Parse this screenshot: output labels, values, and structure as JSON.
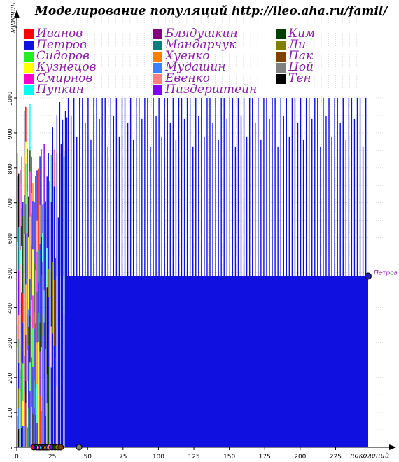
{
  "title": "Моделирование популяций  http://lleo.aha.ru/famil/",
  "y_axis_label": "мужчин",
  "x_axis_label": "поколений",
  "end_label": "Петров",
  "legend": [
    {
      "name": "Иванов",
      "color": "#ff0000"
    },
    {
      "name": "Петров",
      "color": "#1010e0"
    },
    {
      "name": "Сидоров",
      "color": "#22ee22"
    },
    {
      "name": "Кузнецов",
      "color": "#ffff00"
    },
    {
      "name": "Смирнов",
      "color": "#ff00cc"
    },
    {
      "name": "Пупкин",
      "color": "#00ffee"
    },
    {
      "name": "Блядушкин",
      "color": "#800080"
    },
    {
      "name": "Мандарчук",
      "color": "#008080"
    },
    {
      "name": "Хуенко",
      "color": "#ff8000"
    },
    {
      "name": "Мудашин",
      "color": "#4080ff"
    },
    {
      "name": "Евенко",
      "color": "#ff8080"
    },
    {
      "name": "Пиздерштейн",
      "color": "#8000ff"
    },
    {
      "name": "Ким",
      "color": "#004000"
    },
    {
      "name": "Ли",
      "color": "#808000"
    },
    {
      "name": "Пак",
      "color": "#804000"
    },
    {
      "name": "Цой",
      "color": "#808080"
    },
    {
      "name": "Тен",
      "color": "#000000"
    }
  ],
  "chart_data": {
    "type": "bar",
    "title": "Моделирование популяций  http://lleo.aha.ru/famil/",
    "xlabel": "поколений",
    "ylabel": "мужчин",
    "xlim": [
      0,
      248
    ],
    "ylim": [
      0,
      1000
    ],
    "x_ticks": [
      0,
      25,
      50,
      75,
      100,
      125,
      150,
      175,
      200,
      225
    ],
    "y_ticks": [
      0,
      100,
      200,
      300,
      400,
      500,
      600,
      700,
      800,
      900,
      1000
    ],
    "dominant_series": "Петров",
    "dominant_color": "#1010e0",
    "baseline_population": 490,
    "fixation_generation": 36,
    "final_generation": 248,
    "final_value": 490,
    "generations_with_bars": 248,
    "peak_values_sample": [
      1000,
      1000,
      860,
      1000,
      950,
      1000,
      890,
      1000,
      1000,
      930,
      1000,
      880,
      1000,
      1000,
      940
    ]
  }
}
